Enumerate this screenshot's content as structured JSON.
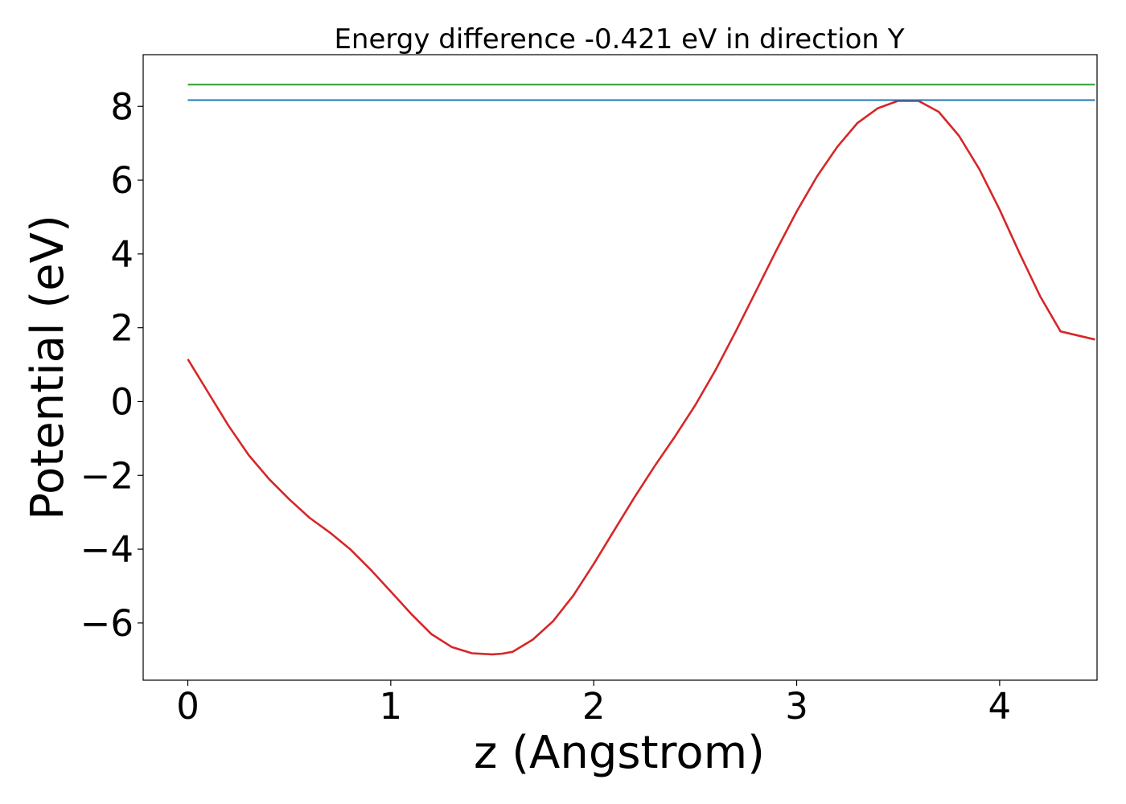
{
  "chart_data": {
    "type": "line",
    "title": "Energy difference -0.421 eV in direction Y",
    "xlabel": "z (Angstrom)",
    "ylabel": "Potential (eV)",
    "xlim": [
      -0.22,
      4.48
    ],
    "ylim": [
      -7.55,
      9.4
    ],
    "xticks": [
      0,
      1,
      2,
      3,
      4
    ],
    "xtick_labels": [
      "0",
      "1",
      "2",
      "3",
      "4"
    ],
    "yticks": [
      -6,
      -4,
      -2,
      0,
      2,
      4,
      6,
      8
    ],
    "ytick_labels": [
      "−6",
      "−4",
      "−2",
      "0",
      "2",
      "4",
      "6",
      "8"
    ],
    "grid": false,
    "series": [
      {
        "color": "#d62728",
        "x": [
          0.0,
          0.1,
          0.2,
          0.3,
          0.4,
          0.5,
          0.6,
          0.7,
          0.8,
          0.9,
          1.0,
          1.1,
          1.2,
          1.3,
          1.4,
          1.5,
          1.55,
          1.6,
          1.7,
          1.8,
          1.9,
          2.0,
          2.1,
          2.2,
          2.3,
          2.4,
          2.5,
          2.6,
          2.7,
          2.8,
          2.9,
          3.0,
          3.1,
          3.2,
          3.3,
          3.4,
          3.5,
          3.6,
          3.7,
          3.8,
          3.9,
          4.0,
          4.1,
          4.2,
          4.3,
          4.47
        ],
        "y": [
          1.15,
          0.25,
          -0.65,
          -1.45,
          -2.1,
          -2.65,
          -3.15,
          -3.55,
          -4.0,
          -4.55,
          -5.15,
          -5.75,
          -6.3,
          -6.65,
          -6.82,
          -6.85,
          -6.83,
          -6.78,
          -6.45,
          -5.95,
          -5.25,
          -4.4,
          -3.5,
          -2.6,
          -1.75,
          -0.95,
          -0.1,
          0.85,
          1.9,
          3.0,
          4.1,
          5.15,
          6.1,
          6.9,
          7.55,
          7.95,
          8.15,
          8.15,
          7.85,
          7.2,
          6.3,
          5.2,
          4.0,
          2.85,
          1.9,
          1.68
        ]
      },
      {
        "color": "#1f77b4",
        "x": [
          0.0,
          4.47
        ],
        "y": [
          8.17,
          8.17
        ]
      },
      {
        "color": "#2ca02c",
        "x": [
          0.0,
          4.47
        ],
        "y": [
          8.59,
          8.59
        ]
      }
    ]
  }
}
